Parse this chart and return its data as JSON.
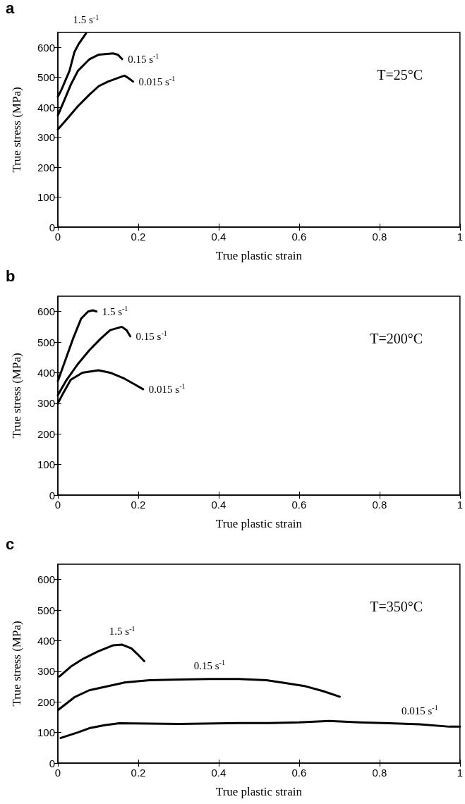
{
  "chart_data": [
    {
      "type": "line",
      "title": "a",
      "xlabel": "True plastic strain",
      "ylabel": "True stress (MPa)",
      "annotations": [
        "T=25°C"
      ],
      "xlim": [
        0,
        1
      ],
      "xticks": [
        0,
        0.2,
        0.4,
        0.6,
        0.8,
        1
      ],
      "ylim": [
        0,
        650
      ],
      "yticks": [
        0,
        100,
        200,
        300,
        400,
        500,
        600
      ],
      "grid": false,
      "legend": false,
      "marker": "none",
      "line_style": "solid",
      "series": [
        {
          "name": "1.5 s$^{-1}$",
          "color": "#000000",
          "x": [
            0,
            0.009,
            0.029,
            0.041,
            0.052,
            0.07
          ],
          "values": [
            435,
            459,
            522,
            584,
            612,
            647
          ]
        },
        {
          "name": "0.15 s$^{-1}$",
          "color": "#000000",
          "x": [
            0,
            0.015,
            0.032,
            0.05,
            0.079,
            0.102,
            0.137,
            0.149,
            0.16
          ],
          "values": [
            373,
            420,
            475,
            522,
            561,
            576,
            580,
            576,
            561
          ]
        },
        {
          "name": "0.015 s$^{-1}$",
          "color": "#000000",
          "x": [
            0,
            0.02,
            0.05,
            0.079,
            0.102,
            0.125,
            0.149,
            0.166,
            0.175,
            0.187
          ],
          "values": [
            326,
            357,
            404,
            443,
            471,
            486,
            498,
            506,
            498,
            486
          ]
        }
      ]
    },
    {
      "type": "line",
      "title": "b",
      "xlabel": "True plastic strain",
      "ylabel": "True stress (MPa)",
      "annotations": [
        "T=200°C"
      ],
      "xlim": [
        0,
        1
      ],
      "xticks": [
        0,
        0.2,
        0.4,
        0.6,
        0.8,
        1
      ],
      "ylim": [
        0,
        650
      ],
      "yticks": [
        0,
        100,
        200,
        300,
        400,
        500,
        600
      ],
      "grid": false,
      "legend": false,
      "marker": "none",
      "line_style": "solid",
      "series": [
        {
          "name": "1.5 s$^{-1}$",
          "color": "#000000",
          "x": [
            0,
            0.017,
            0.038,
            0.058,
            0.075,
            0.087,
            0.096
          ],
          "values": [
            373,
            435,
            512,
            577,
            600,
            604,
            600
          ]
        },
        {
          "name": "0.15 s$^{-1}$",
          "color": "#000000",
          "x": [
            0,
            0.02,
            0.049,
            0.078,
            0.107,
            0.13,
            0.159,
            0.171,
            0.18
          ],
          "values": [
            327,
            373,
            427,
            473,
            512,
            539,
            550,
            539,
            519
          ]
        },
        {
          "name": "0.015 s$^{-1}$",
          "color": "#000000",
          "x": [
            0,
            0.014,
            0.032,
            0.061,
            0.101,
            0.13,
            0.165,
            0.191,
            0.212
          ],
          "values": [
            300,
            335,
            377,
            400,
            408,
            400,
            381,
            362,
            346
          ]
        }
      ]
    },
    {
      "type": "line",
      "title": "c",
      "xlabel": "True plastic strain",
      "ylabel": "True stress (MPa)",
      "annotations": [
        "T=350°C"
      ],
      "xlim": [
        0,
        1
      ],
      "xticks": [
        0,
        0.2,
        0.4,
        0.6,
        0.8,
        1
      ],
      "ylim": [
        0,
        650
      ],
      "yticks": [
        0,
        100,
        200,
        300,
        400,
        500,
        600
      ],
      "grid": false,
      "legend": false,
      "marker": "none",
      "line_style": "solid",
      "series": [
        {
          "name": "1.5 s$^{-1}$",
          "color": "#000000",
          "x": [
            0.004,
            0.034,
            0.063,
            0.1,
            0.138,
            0.16,
            0.183,
            0.198,
            0.215
          ],
          "values": [
            283,
            317,
            341,
            365,
            385,
            387,
            375,
            356,
            333
          ]
        },
        {
          "name": "0.15 s$^{-1}$",
          "color": "#000000",
          "x": [
            0.001,
            0.041,
            0.078,
            0.116,
            0.168,
            0.228,
            0.302,
            0.377,
            0.451,
            0.519,
            0.563,
            0.616,
            0.66,
            0.701
          ],
          "values": [
            174,
            215,
            238,
            249,
            264,
            271,
            273,
            275,
            275,
            271,
            262,
            251,
            235,
            217
          ]
        },
        {
          "name": "0.015 s$^{-1}$",
          "color": "#000000",
          "x": [
            0.007,
            0.049,
            0.078,
            0.116,
            0.153,
            0.302,
            0.451,
            0.526,
            0.6,
            0.675,
            0.75,
            0.825,
            0.9,
            0.974,
            1
          ],
          "values": [
            82,
            100,
            114,
            124,
            130,
            128,
            131,
            131,
            133,
            138,
            133,
            130,
            127,
            119,
            119
          ]
        }
      ]
    }
  ]
}
